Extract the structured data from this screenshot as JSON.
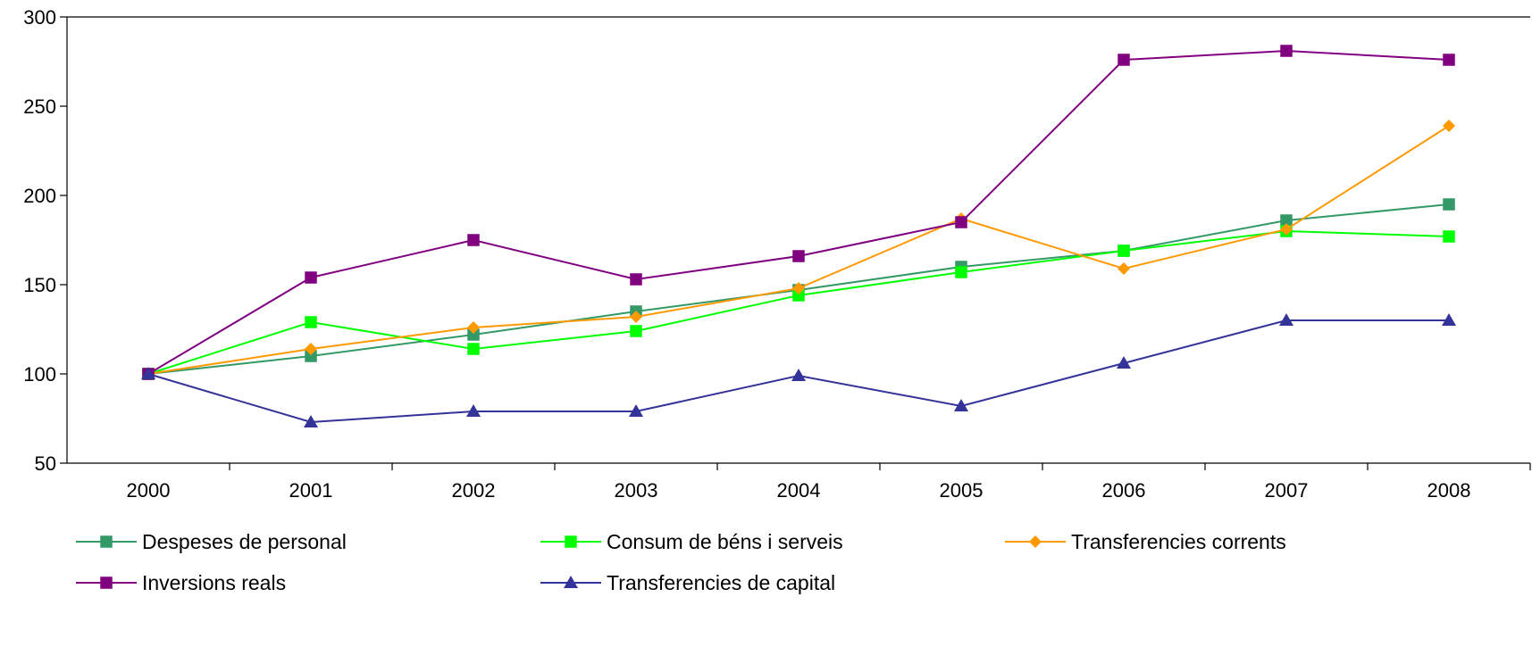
{
  "chart_data": {
    "type": "line",
    "title": "",
    "xlabel": "",
    "ylabel": "",
    "x": [
      "2000",
      "2001",
      "2002",
      "2003",
      "2004",
      "2005",
      "2006",
      "2007",
      "2008"
    ],
    "ylim": [
      50,
      300
    ],
    "yticks": [
      50,
      100,
      150,
      200,
      250,
      300
    ],
    "grid": false,
    "legend_position": "bottom",
    "series": [
      {
        "name": "Despeses de personal",
        "color": "#339966",
        "marker": "square",
        "values": [
          100,
          110,
          122,
          135,
          147,
          160,
          169,
          186,
          195
        ]
      },
      {
        "name": "Consum de béns i serveis",
        "color": "#00ff00",
        "marker": "square",
        "values": [
          100,
          129,
          114,
          124,
          144,
          157,
          169,
          180,
          177
        ]
      },
      {
        "name": "Transferencies corrents",
        "color": "#ff9900",
        "marker": "diamond",
        "values": [
          100,
          114,
          126,
          132,
          148,
          187,
          159,
          181,
          239
        ]
      },
      {
        "name": "Inversions reals",
        "color": "#800080",
        "marker": "square",
        "values": [
          100,
          154,
          175,
          153,
          166,
          185,
          276,
          281,
          276
        ]
      },
      {
        "name": "Transferencies de capital",
        "color": "#333399",
        "marker": "triangle",
        "values": [
          100,
          73,
          79,
          79,
          99,
          82,
          106,
          130,
          130
        ]
      }
    ]
  }
}
